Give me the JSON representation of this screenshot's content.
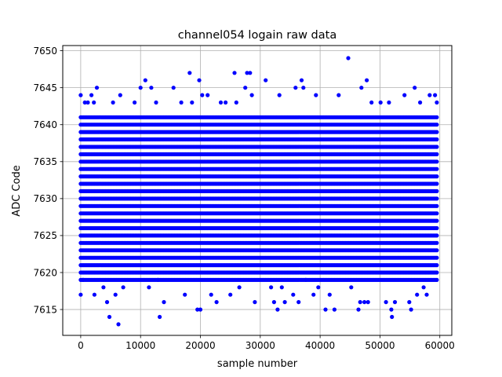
{
  "chart_data": {
    "type": "scatter",
    "title": "channel054 logain raw data",
    "xlabel": "sample number",
    "ylabel": "ADC Code",
    "xlim": [
      -3000,
      62000
    ],
    "ylim": [
      7611.5,
      7650.7
    ],
    "x_ticks": [
      0,
      10000,
      20000,
      30000,
      40000,
      50000,
      60000
    ],
    "x_tick_labels": [
      "0",
      "10000",
      "20000",
      "30000",
      "40000",
      "50000",
      "60000"
    ],
    "y_ticks": [
      7615,
      7620,
      7625,
      7630,
      7635,
      7640,
      7645,
      7650
    ],
    "y_tick_labels": [
      "7615",
      "7620",
      "7625",
      "7630",
      "7635",
      "7640",
      "7645",
      "7650"
    ],
    "grid": true,
    "marker_color": "#0000ff",
    "series": [
      {
        "x_range": [
          0,
          59500
        ],
        "dense_band": [
          7619,
          7641
        ],
        "points": [
          [
            0,
            7644
          ],
          [
            0,
            7617
          ],
          [
            400,
            7619
          ],
          [
            700,
            7643
          ],
          [
            1200,
            7643
          ],
          [
            1800,
            7644
          ],
          [
            2200,
            7643
          ],
          [
            2700,
            7645
          ],
          [
            2300,
            7617
          ],
          [
            3800,
            7618
          ],
          [
            4400,
            7616
          ],
          [
            4800,
            7614
          ],
          [
            5400,
            7643
          ],
          [
            5800,
            7617
          ],
          [
            6300,
            7613
          ],
          [
            6600,
            7644
          ],
          [
            7100,
            7618
          ],
          [
            9000,
            7643
          ],
          [
            10000,
            7645
          ],
          [
            10800,
            7646
          ],
          [
            11400,
            7618
          ],
          [
            11800,
            7645
          ],
          [
            12600,
            7643
          ],
          [
            12900,
            7619
          ],
          [
            13200,
            7614
          ],
          [
            13900,
            7616
          ],
          [
            15500,
            7645
          ],
          [
            16800,
            7643
          ],
          [
            17400,
            7617
          ],
          [
            18200,
            7647
          ],
          [
            18600,
            7643
          ],
          [
            19500,
            7615
          ],
          [
            19800,
            7646
          ],
          [
            20000,
            7615
          ],
          [
            20300,
            7644
          ],
          [
            21200,
            7644
          ],
          [
            21800,
            7617
          ],
          [
            22700,
            7616
          ],
          [
            23400,
            7643
          ],
          [
            24200,
            7643
          ],
          [
            25000,
            7617
          ],
          [
            25700,
            7647
          ],
          [
            26000,
            7643
          ],
          [
            26500,
            7618
          ],
          [
            27500,
            7645
          ],
          [
            27800,
            7647
          ],
          [
            28300,
            7647
          ],
          [
            28600,
            7644
          ],
          [
            29100,
            7616
          ],
          [
            30900,
            7646
          ],
          [
            31800,
            7618
          ],
          [
            32300,
            7616
          ],
          [
            32900,
            7615
          ],
          [
            33200,
            7644
          ],
          [
            33600,
            7618
          ],
          [
            34100,
            7616
          ],
          [
            35500,
            7617
          ],
          [
            35900,
            7645
          ],
          [
            36400,
            7616
          ],
          [
            36900,
            7646
          ],
          [
            37200,
            7645
          ],
          [
            37600,
            7619
          ],
          [
            38900,
            7617
          ],
          [
            39300,
            7644
          ],
          [
            39700,
            7618
          ],
          [
            40900,
            7615
          ],
          [
            41600,
            7617
          ],
          [
            42400,
            7615
          ],
          [
            43100,
            7644
          ],
          [
            44700,
            7649
          ],
          [
            45200,
            7618
          ],
          [
            46400,
            7615
          ],
          [
            46700,
            7616
          ],
          [
            46900,
            7645
          ],
          [
            47400,
            7616
          ],
          [
            47800,
            7646
          ],
          [
            48000,
            7616
          ],
          [
            48600,
            7643
          ],
          [
            50100,
            7643
          ],
          [
            51000,
            7616
          ],
          [
            51500,
            7643
          ],
          [
            51900,
            7615
          ],
          [
            52000,
            7614
          ],
          [
            52500,
            7616
          ],
          [
            54100,
            7644
          ],
          [
            54900,
            7616
          ],
          [
            55200,
            7615
          ],
          [
            55800,
            7645
          ],
          [
            56200,
            7617
          ],
          [
            56700,
            7643
          ],
          [
            57300,
            7618
          ],
          [
            57800,
            7617
          ],
          [
            58300,
            7644
          ],
          [
            59200,
            7644
          ],
          [
            59500,
            7643
          ]
        ]
      }
    ]
  }
}
